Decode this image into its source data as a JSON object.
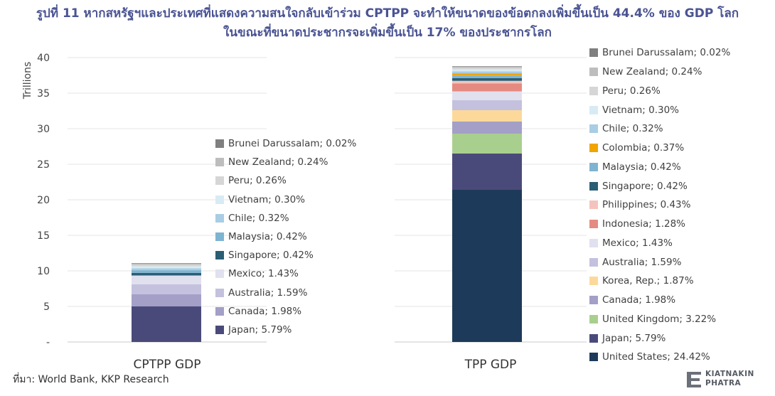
{
  "title": {
    "line1": "รูปที่ 11 หากสหรัฐฯและประเทศที่แสดงความสนใจกลับเข้าร่วม CPTPP จะทำให้ขนาดของข้อตกลงเพิ่มขึ้นเป็น 44.4% ของ GDP โลก",
    "line2": "ในขณะที่ขนาดประชากรจะเพิ่มขึ้นเป็น 17% ของประชากรโลก"
  },
  "source": "ที่มา: World Bank, KKP Research",
  "logo": {
    "line1": "KIATNAKIN",
    "line2": "PHATRA"
  },
  "colors": {
    "title": "#4a5493",
    "United States": "#1e3a5a",
    "Japan": "#4a4a7a",
    "United Kingdom": "#a9cf8f",
    "Canada": "#a39fc7",
    "Korea, Rep.": "#fcd99a",
    "Australia": "#c4c1de",
    "Mexico": "#e1e0ef",
    "Indonesia": "#e58a80",
    "Philippines": "#f5c3bd",
    "Singapore": "#2a5e74",
    "Malaysia": "#7eb4d2",
    "Colombia": "#f0a500",
    "Chile": "#a9cde4",
    "Vietnam": "#d8ebf5",
    "Peru": "#d6d6d6",
    "New Zealand": "#bdbdbd",
    "Brunei Darussalam": "#7f7f7f"
  },
  "chart_data": {
    "type": "bar",
    "stacked": true,
    "ylabel": "Trillions",
    "ylim": [
      0,
      40
    ],
    "yticks": [
      0,
      5,
      10,
      15,
      20,
      25,
      30,
      35,
      40
    ],
    "ytick_labels": [
      "-",
      "5",
      "10",
      "15",
      "20",
      "25",
      "30",
      "35",
      "40"
    ],
    "grid": true,
    "categories": [
      "CPTPP GDP",
      "TPP GDP"
    ],
    "series": [
      {
        "name": "United States",
        "values": [
          0,
          21.4
        ]
      },
      {
        "name": "Japan",
        "values": [
          5.0,
          5.1
        ]
      },
      {
        "name": "United Kingdom",
        "values": [
          0,
          2.8
        ]
      },
      {
        "name": "Canada",
        "values": [
          1.7,
          1.7
        ]
      },
      {
        "name": "Korea, Rep.",
        "values": [
          0,
          1.6
        ]
      },
      {
        "name": "Australia",
        "values": [
          1.4,
          1.4
        ]
      },
      {
        "name": "Mexico",
        "values": [
          1.25,
          1.25
        ]
      },
      {
        "name": "Indonesia",
        "values": [
          0,
          1.1
        ]
      },
      {
        "name": "Philippines",
        "values": [
          0,
          0.38
        ]
      },
      {
        "name": "Singapore",
        "values": [
          0.37,
          0.37
        ]
      },
      {
        "name": "Malaysia",
        "values": [
          0.37,
          0.37
        ]
      },
      {
        "name": "Colombia",
        "values": [
          0,
          0.32
        ]
      },
      {
        "name": "Chile",
        "values": [
          0.28,
          0.28
        ]
      },
      {
        "name": "Vietnam",
        "values": [
          0.26,
          0.26
        ]
      },
      {
        "name": "Peru",
        "values": [
          0.23,
          0.23
        ]
      },
      {
        "name": "New Zealand",
        "values": [
          0.21,
          0.21
        ]
      },
      {
        "name": "Brunei Darussalam",
        "values": [
          0.02,
          0.02
        ]
      }
    ],
    "legends": {
      "CPTPP GDP": [
        {
          "name": "Brunei Darussalam",
          "label": "Brunei Darussalam; 0.02%"
        },
        {
          "name": "New Zealand",
          "label": "New Zealand; 0.24%"
        },
        {
          "name": "Peru",
          "label": "Peru; 0.26%"
        },
        {
          "name": "Vietnam",
          "label": "Vietnam; 0.30%"
        },
        {
          "name": "Chile",
          "label": "Chile; 0.32%"
        },
        {
          "name": "Malaysia",
          "label": "Malaysia; 0.42%"
        },
        {
          "name": "Singapore",
          "label": "Singapore; 0.42%"
        },
        {
          "name": "Mexico",
          "label": "Mexico; 1.43%"
        },
        {
          "name": "Australia",
          "label": "Australia; 1.59%"
        },
        {
          "name": "Canada",
          "label": "Canada; 1.98%"
        },
        {
          "name": "Japan",
          "label": "Japan; 5.79%"
        }
      ],
      "TPP GDP": [
        {
          "name": "Brunei Darussalam",
          "label": "Brunei Darussalam; 0.02%"
        },
        {
          "name": "New Zealand",
          "label": "New Zealand; 0.24%"
        },
        {
          "name": "Peru",
          "label": "Peru; 0.26%"
        },
        {
          "name": "Vietnam",
          "label": "Vietnam; 0.30%"
        },
        {
          "name": "Chile",
          "label": "Chile; 0.32%"
        },
        {
          "name": "Colombia",
          "label": "Colombia; 0.37%"
        },
        {
          "name": "Malaysia",
          "label": "Malaysia; 0.42%"
        },
        {
          "name": "Singapore",
          "label": "Singapore; 0.42%"
        },
        {
          "name": "Philippines",
          "label": "Philippines; 0.43%"
        },
        {
          "name": "Indonesia",
          "label": "Indonesia; 1.28%"
        },
        {
          "name": "Mexico",
          "label": "Mexico; 1.43%"
        },
        {
          "name": "Australia",
          "label": "Australia; 1.59%"
        },
        {
          "name": "Korea, Rep.",
          "label": "Korea, Rep.; 1.87%"
        },
        {
          "name": "Canada",
          "label": "Canada; 1.98%"
        },
        {
          "name": "United Kingdom",
          "label": "United Kingdom; 3.22%"
        },
        {
          "name": "Japan",
          "label": "Japan; 5.79%"
        },
        {
          "name": "United States",
          "label": "United States; 24.42%"
        }
      ]
    }
  }
}
